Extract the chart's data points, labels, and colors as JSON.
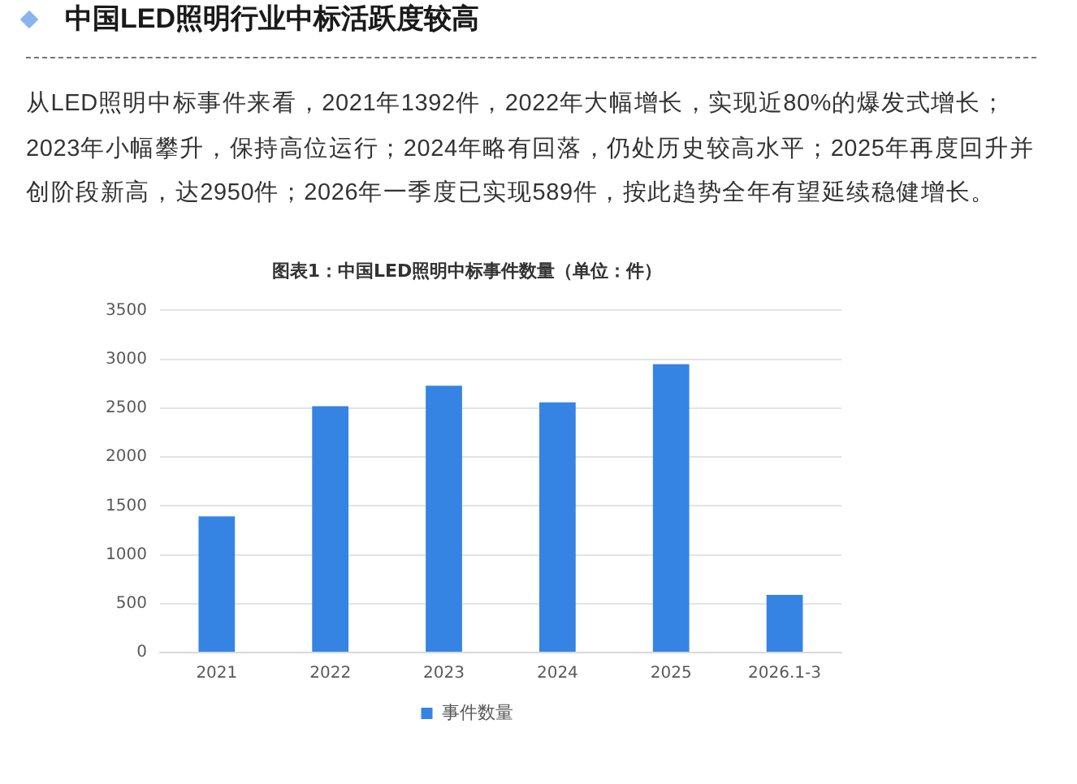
{
  "chart_data": {
    "type": "bar",
    "title": "中国LED照明行业中标活跃度较高",
    "subtitle": "图表1：中国LED照明中标事件数量（单位：件）",
    "annotations": [
      "从LED照明中标事件来看，2021年1392件，2022年大幅增长，实现近80%的爆发式增长；2023年小幅攀升，保持高位运行；2024年略有回落，仍处历史较高水平；2025年再度回升并创阶段新高，达2950件；2026年一季度已实现589件，按此趋势全年有望延续稳健增长。"
    ],
    "categories": [
      "2021",
      "2022",
      "2023",
      "2024",
      "2025",
      "2026.1-3"
    ],
    "series": [
      {
        "name": "事件数量",
        "color": "#3584e4",
        "values": [
          1392,
          2520,
          2730,
          2560,
          2950,
          589
        ]
      }
    ],
    "ylim": [
      0,
      3500
    ],
    "yticks": [
      0,
      500,
      1000,
      1500,
      2000,
      2500,
      3000,
      3500
    ],
    "grid": "y",
    "legend": "bottom"
  }
}
